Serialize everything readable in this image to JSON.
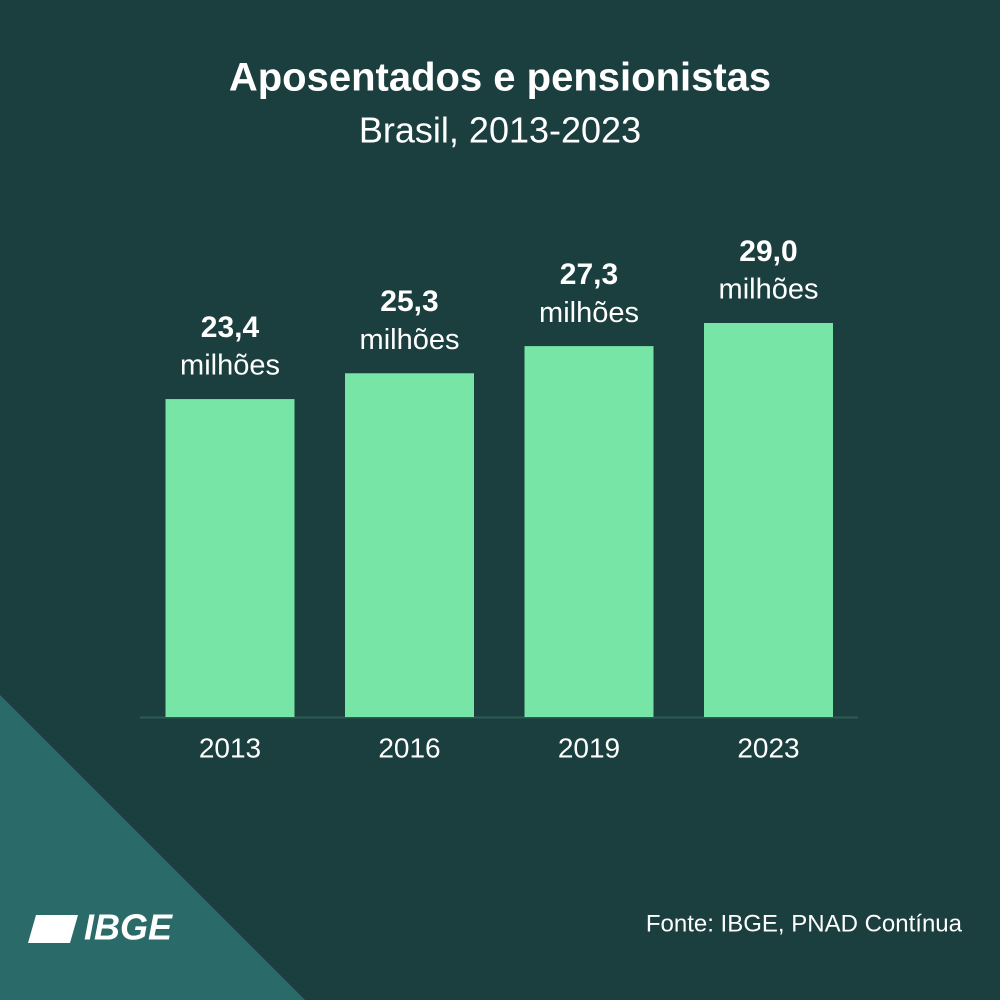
{
  "chart_data": {
    "type": "bar",
    "title": "Aposentados e pensionistas",
    "subtitle": "Brasil, 2013-2023",
    "categories": [
      "2013",
      "2016",
      "2019",
      "2023"
    ],
    "values": [
      23.4,
      25.3,
      27.3,
      29.0
    ],
    "value_labels": [
      "23,4",
      "25,3",
      "27,3",
      "29,0"
    ],
    "unit": "milhões",
    "color": "#76e5a6",
    "source": "Fonte: IBGE, PNAD Contínua",
    "logo": "IBGE"
  }
}
